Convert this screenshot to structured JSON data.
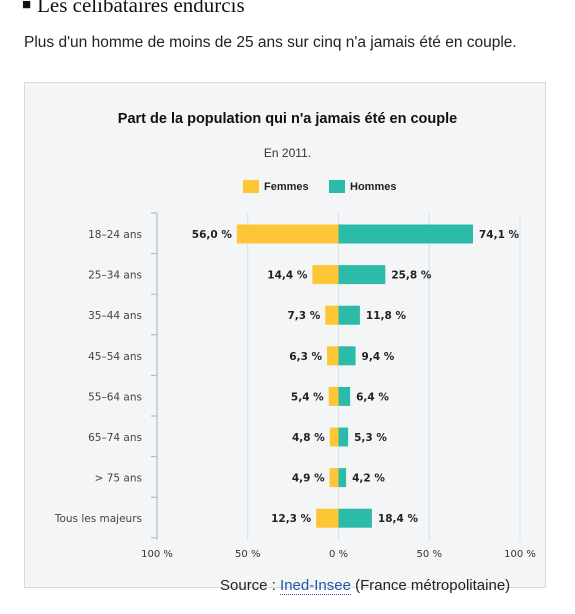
{
  "header": {
    "section_marker": "■",
    "section_title": "Les célibataires endurcis",
    "lede": "Plus d'un homme de moins de 25 ans sur cinq n'a jamais été en couple."
  },
  "source": {
    "prefix": "Source : ",
    "link": "Ined-Insee",
    "suffix": " (France métropolitaine)"
  },
  "colors": {
    "femmes": "#fcc634",
    "hommes": "#2dbba9",
    "grid": "#d8e2ea",
    "axis": "#aab4c0"
  },
  "chart_data": {
    "type": "bar",
    "orientation": "horizontal-diverging",
    "title": "Part de la population qui n'a jamais été en couple",
    "subtitle": "En 2011.",
    "categories": [
      "18–24 ans",
      "25–34 ans",
      "35–44 ans",
      "45–54 ans",
      "55–64 ans",
      "65–74 ans",
      "> 75 ans",
      "Tous les majeurs"
    ],
    "series": [
      {
        "name": "Femmes",
        "values": [
          56.0,
          14.4,
          7.3,
          6.3,
          5.4,
          4.8,
          4.9,
          12.3
        ],
        "labels": [
          "56,0 %",
          "14,4 %",
          "7,3 %",
          "6,3 %",
          "5,4 %",
          "4,8 %",
          "4,9 %",
          "12,3 %"
        ]
      },
      {
        "name": "Hommes",
        "values": [
          74.1,
          25.8,
          11.8,
          9.4,
          6.4,
          5.3,
          4.2,
          18.4
        ],
        "labels": [
          "74,1 %",
          "25,8 %",
          "11,8 %",
          "9,4 %",
          "6,4 %",
          "5,3 %",
          "4,2 %",
          "18,4 %"
        ]
      }
    ],
    "xlim": [
      -100,
      100
    ],
    "xticks": [
      -100,
      -50,
      0,
      50,
      100
    ],
    "xtick_labels": [
      "100 %",
      "50 %",
      "0 %",
      "50 %",
      "100 %"
    ],
    "grid": true,
    "legend_position": "top-center"
  }
}
